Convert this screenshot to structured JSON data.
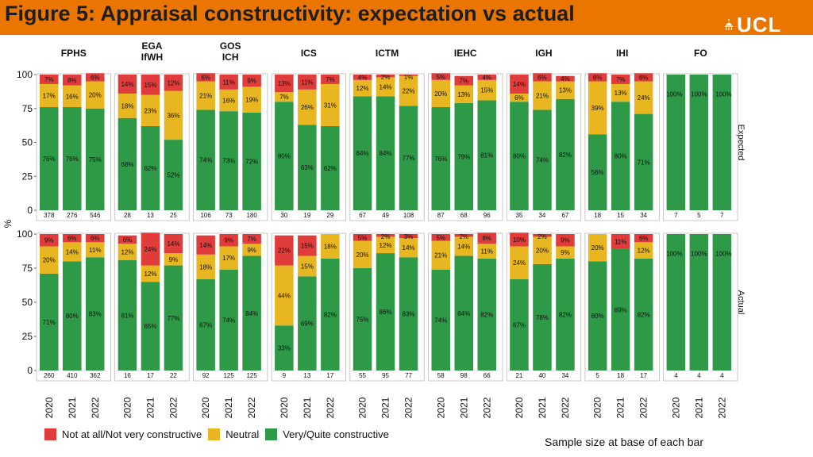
{
  "header": {
    "title": "Figure 5: Appraisal constructivity: expectation vs actual",
    "logo_text": "UCL"
  },
  "chart_data": {
    "type": "stacked-bar",
    "title": "Figure 5: Appraisal constructivity: expectation vs actual",
    "ylabel": "%",
    "ylim": [
      0,
      100
    ],
    "yticks": [
      "0",
      "25",
      "50",
      "75",
      "100"
    ],
    "categories": [
      "2020",
      "2021",
      "2022"
    ],
    "groups": [
      "FPHS",
      "EGA IfWH",
      "GOS ICH",
      "ICS",
      "ICTM",
      "IEHC",
      "IGH",
      "IHI",
      "FO"
    ],
    "series": [
      {
        "key": "green",
        "name": "Very/Quite constructive",
        "color": "#2e9a48"
      },
      {
        "key": "yellow",
        "name": "Neutral",
        "color": "#e8b620"
      },
      {
        "key": "red",
        "name": "Not at all/Not very constructive",
        "color": "#e03c3c"
      }
    ],
    "panels": [
      {
        "name": "Expected",
        "bars": [
          [
            {
              "green": 76,
              "yellow": 17,
              "red": 7,
              "n": "378"
            },
            {
              "green": 76,
              "yellow": 16,
              "red": 8,
              "n": "276"
            },
            {
              "green": 75,
              "yellow": 20,
              "red": 6,
              "n": "546"
            }
          ],
          [
            {
              "green": 68,
              "yellow": 18,
              "red": 14,
              "n": "28"
            },
            {
              "green": 62,
              "yellow": 23,
              "red": 15,
              "n": "13"
            },
            {
              "green": 52,
              "yellow": 36,
              "red": 12,
              "n": "25"
            }
          ],
          [
            {
              "green": 74,
              "yellow": 21,
              "red": 6,
              "n": "106"
            },
            {
              "green": 73,
              "yellow": 16,
              "red": 11,
              "n": "73"
            },
            {
              "green": 72,
              "yellow": 19,
              "red": 9,
              "n": "180"
            }
          ],
          [
            {
              "green": 80,
              "yellow": 7,
              "red": 13,
              "n": "30"
            },
            {
              "green": 63,
              "yellow": 26,
              "red": 11,
              "n": "19"
            },
            {
              "green": 62,
              "yellow": 31,
              "red": 7,
              "n": "29"
            }
          ],
          [
            {
              "green": 84,
              "yellow": 12,
              "red": 4,
              "n": "67"
            },
            {
              "green": 84,
              "yellow": 14,
              "red": 2,
              "n": "49"
            },
            {
              "green": 77,
              "yellow": 22,
              "red": 1,
              "n": "108"
            }
          ],
          [
            {
              "green": 76,
              "yellow": 20,
              "red": 5,
              "n": "87"
            },
            {
              "green": 79,
              "yellow": 13,
              "red": 7,
              "n": "68"
            },
            {
              "green": 81,
              "yellow": 15,
              "red": 4,
              "n": "96"
            }
          ],
          [
            {
              "green": 80,
              "yellow": 6,
              "red": 14,
              "n": "35"
            },
            {
              "green": 74,
              "yellow": 21,
              "red": 6,
              "n": "34"
            },
            {
              "green": 82,
              "yellow": 13,
              "red": 4,
              "n": "67"
            }
          ],
          [
            {
              "green": 56,
              "yellow": 39,
              "red": 6,
              "n": "18"
            },
            {
              "green": 80,
              "yellow": 13,
              "red": 7,
              "n": "15"
            },
            {
              "green": 71,
              "yellow": 24,
              "red": 6,
              "n": "34"
            }
          ],
          [
            {
              "green": 100,
              "yellow": 0,
              "red": 0,
              "n": "7"
            },
            {
              "green": 100,
              "yellow": 0,
              "red": 0,
              "n": "5"
            },
            {
              "green": 100,
              "yellow": 0,
              "red": 0,
              "n": "7"
            }
          ]
        ]
      },
      {
        "name": "Actual",
        "bars": [
          [
            {
              "green": 71,
              "yellow": 20,
              "red": 9,
              "n": "260"
            },
            {
              "green": 80,
              "yellow": 14,
              "red": 6,
              "n": "410"
            },
            {
              "green": 83,
              "yellow": 11,
              "red": 6,
              "n": "362"
            }
          ],
          [
            {
              "green": 81,
              "yellow": 12,
              "red": 6,
              "n": "16"
            },
            {
              "green": 65,
              "yellow": 12,
              "red": 24,
              "n": "17"
            },
            {
              "green": 77,
              "yellow": 9,
              "red": 14,
              "n": "22"
            }
          ],
          [
            {
              "green": 67,
              "yellow": 18,
              "red": 14,
              "n": "92"
            },
            {
              "green": 74,
              "yellow": 17,
              "red": 9,
              "n": "125"
            },
            {
              "green": 84,
              "yellow": 9,
              "red": 7,
              "n": "125"
            }
          ],
          [
            {
              "green": 33,
              "yellow": 44,
              "red": 22,
              "n": "9"
            },
            {
              "green": 69,
              "yellow": 15,
              "red": 15,
              "n": "13"
            },
            {
              "green": 82,
              "yellow": 18,
              "red": 0,
              "n": "17"
            }
          ],
          [
            {
              "green": 75,
              "yellow": 20,
              "red": 5,
              "n": "55"
            },
            {
              "green": 86,
              "yellow": 12,
              "red": 2,
              "n": "95"
            },
            {
              "green": 83,
              "yellow": 14,
              "red": 3,
              "n": "77"
            }
          ],
          [
            {
              "green": 74,
              "yellow": 21,
              "red": 5,
              "n": "58"
            },
            {
              "green": 84,
              "yellow": 14,
              "red": 2,
              "n": "98"
            },
            {
              "green": 82,
              "yellow": 11,
              "red": 8,
              "n": "66"
            }
          ],
          [
            {
              "green": 67,
              "yellow": 24,
              "red": 10,
              "n": "21"
            },
            {
              "green": 78,
              "yellow": 20,
              "red": 2,
              "n": "40"
            },
            {
              "green": 82,
              "yellow": 9,
              "red": 9,
              "n": "34"
            }
          ],
          [
            {
              "green": 80,
              "yellow": 20,
              "red": 0,
              "n": "5"
            },
            {
              "green": 89,
              "yellow": 0,
              "red": 11,
              "n": "18"
            },
            {
              "green": 82,
              "yellow": 12,
              "red": 6,
              "n": "17"
            }
          ],
          [
            {
              "green": 100,
              "yellow": 0,
              "red": 0,
              "n": "4"
            },
            {
              "green": 100,
              "yellow": 0,
              "red": 0,
              "n": "4"
            },
            {
              "green": 100,
              "yellow": 0,
              "red": 0,
              "n": "4"
            }
          ]
        ]
      }
    ],
    "legend": [
      {
        "label": "Not at all/Not very constructive",
        "color": "#e03c3c"
      },
      {
        "label": "Neutral",
        "color": "#e8b620"
      },
      {
        "label": "Very/Quite constructive",
        "color": "#2e9a48"
      }
    ],
    "footnote": "Sample size at base of each bar"
  }
}
